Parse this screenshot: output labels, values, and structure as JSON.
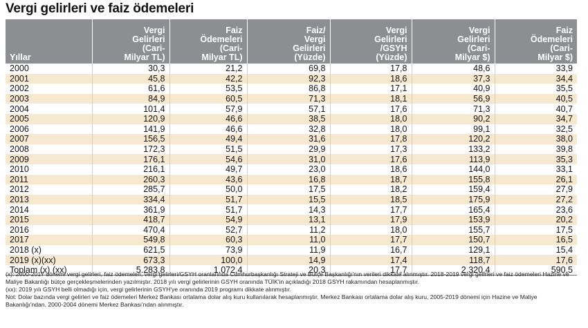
{
  "title": "Vergi gelirleri ve faiz ödemeleri",
  "columns": [
    "Yıllar",
    "Vergi\nGelirleri\n(Cari-\nMilyar TL)",
    "Faiz\nÖdemeleri\n(Cari-\nMilyar TL)",
    "Faiz/\nVergi\nGelirleri\n(Yüzde)",
    "Vergi\nGelirleri\n/GSYH\n(Yüzde)",
    "Vergi\nGelirleri\n(Cari-\nMilyar $)",
    "Faiz\nÖdemeleri\n(Cari-\nMilyar $)"
  ],
  "rows": [
    [
      "2000",
      "30,3",
      "21,2",
      "69,8",
      "17,8",
      "48,6",
      "33,9"
    ],
    [
      "2001",
      "45,8",
      "42,2",
      "92,3",
      "18,6",
      "37,3",
      "34,4"
    ],
    [
      "2002",
      "61,6",
      "53,5",
      "86,8",
      "17,1",
      "40,9",
      "35,5"
    ],
    [
      "2003",
      "84,9",
      "60,5",
      "71,3",
      "18,1",
      "56,9",
      "40,5"
    ],
    [
      "2004",
      "101,4",
      "57,9",
      "57,1",
      "17,6",
      "71,3",
      "40,7"
    ],
    [
      "2005",
      "120,9",
      "46,6",
      "38,5",
      "18,0",
      "90,2",
      "34,7"
    ],
    [
      "2006",
      "141,9",
      "46,6",
      "32,8",
      "18,0",
      "99,1",
      "32,5"
    ],
    [
      "2007",
      "156,5",
      "49,4",
      "31,6",
      "17,8",
      "120,2",
      "38,0"
    ],
    [
      "2008",
      "172,3",
      "51,5",
      "29,9",
      "17,3",
      "133,2",
      "39,8"
    ],
    [
      "2009",
      "176,1",
      "54,6",
      "31,0",
      "17,6",
      "113,9",
      "35,3"
    ],
    [
      "2010",
      "216,1",
      "49,7",
      "23,0",
      "18,6",
      "144,0",
      "33,1"
    ],
    [
      "2011",
      "260,3",
      "43,6",
      "16,8",
      "18,7",
      "155,8",
      "26,1"
    ],
    [
      "2012",
      "285,7",
      "50,0",
      "17,5",
      "18,2",
      "159,4",
      "27,9"
    ],
    [
      "2013",
      "334,4",
      "51,7",
      "15,5",
      "18,5",
      "175,9",
      "27,2"
    ],
    [
      "2014",
      "361,9",
      "51,7",
      "14,3",
      "17,7",
      "165,4",
      "23,6"
    ],
    [
      "2015",
      "418,7",
      "54,9",
      "13,1",
      "17,9",
      "153,9",
      "20,2"
    ],
    [
      "2016",
      "470,4",
      "52,7",
      "11,2",
      "18,0",
      "155,7",
      "17,5"
    ],
    [
      "2017",
      "549,8",
      "60,3",
      "11,0",
      "17,7",
      "150,7",
      "16,5"
    ],
    [
      "2018 (x)",
      "621,5",
      "73,9",
      "11,9",
      "16,7",
      "129,1",
      "15,4"
    ],
    [
      "2019 (x)(xx)",
      "673,3",
      "100,0",
      "14,9",
      "17,4",
      "118,7",
      "17,6"
    ],
    [
      "Toplam (x) (xx)",
      "5.283,8",
      "1.072,4",
      "20,3",
      "17,7",
      "2.320,4",
      "590,5"
    ]
  ],
  "notes": [
    "(x): 2000-2017 dönemi vergi gelirleri, faiz ödemeleri, vergi gelirleri/GSYH oranlarında Cumhurbaşkanlığı Strateji ve Bütçe Başkanlığı'nın verileri dikkate alınmıştır. 2018-2019 vergi gelirleri ve faiz ödemeleri Hazine ve Maliye Bakanlığı bütçe gerçekleşmelerinden yazılmıştır. 2018 yılı vergi gelirlerinin GSYH oranında TÜİK'in açıkladığı 2018 GSYH rakamından hesaplanmıştır.",
    "(xx): 2019 yılı GSYH belli olmadığı için, vergi gelirlerinin GSYH'ye oranında 2019 programı dikkate alınmıştır.",
    "Not: Dolar bazında vergi gelirleri ve faiz ödemeleri Merkez Bankası ortalama dolar alış kuru kullanılarak hesaplanmıştır. Merkez Bankası ortalama dolar alış kuru, 2005-2019 dönemi için Hazine ve Maliye Bakanlığı'ndan, 2000-2004 dönemi Merkez Bankası'ndan alınmıştır."
  ]
}
